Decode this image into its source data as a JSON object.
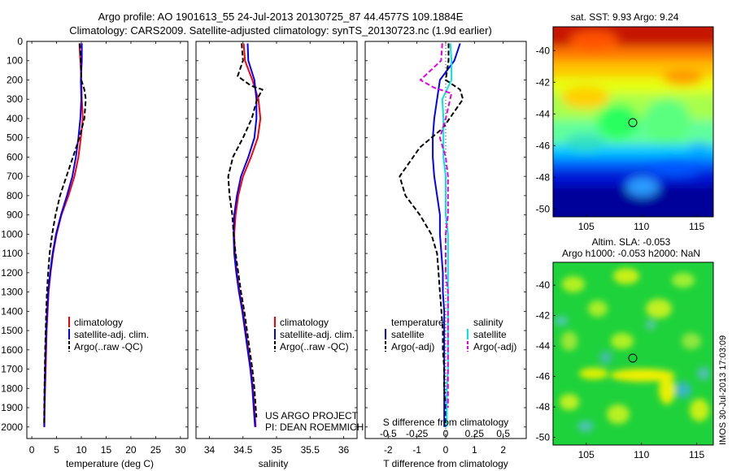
{
  "header": {
    "line1": "Argo profile: AO 1901613_55 24-Jul-2013 20130725_87 44.4577S 109.1884E",
    "line2": "Climatology: CARS2009. Satellite-adjusted climatology: synTS_20130723.nc (1.9d earlier)"
  },
  "colors": {
    "climatology": "#ff0000",
    "satellite": "#0000ff",
    "satellite_salinity_diff": "#00e5e5",
    "argo": "#000000",
    "argo_salinity_diff": "#e600e6"
  },
  "chart_data": [
    {
      "type": "line",
      "xlabel": "temperature (deg C)",
      "ylabel": "",
      "xlim": [
        -1,
        31.5
      ],
      "ylim": [
        2060,
        0
      ],
      "xticks": [
        "0",
        "5",
        "10",
        "15",
        "20",
        "25",
        "30"
      ],
      "yticks": [
        "0",
        "100",
        "200",
        "300",
        "400",
        "500",
        "600",
        "700",
        "800",
        "900",
        "1000",
        "1100",
        "1200",
        "1300",
        "1400",
        "1500",
        "1600",
        "1700",
        "1800",
        "1900",
        "2000"
      ],
      "legend": [
        "climatology",
        "satellite-adj. clim.",
        "Argo(..raw -QC)"
      ],
      "legend_position": "lower-right",
      "series": [
        {
          "name": "climatology",
          "style": "solid",
          "color": "red",
          "x": [
            9.6,
            9.8,
            10.0,
            10.1,
            10.3,
            9.9,
            9.4,
            8.6,
            7.4,
            6.0,
            5.0,
            4.3,
            3.8,
            3.4,
            3.2,
            3.0,
            2.9,
            2.8,
            2.7,
            2.6,
            2.55
          ],
          "y": [
            10,
            100,
            200,
            300,
            400,
            500,
            600,
            700,
            800,
            900,
            1000,
            1100,
            1200,
            1300,
            1400,
            1500,
            1600,
            1700,
            1800,
            1900,
            2000
          ]
        },
        {
          "name": "satellite-adj. clim.",
          "style": "solid",
          "color": "blue",
          "x": [
            10.1,
            10.1,
            9.9,
            10.0,
            9.8,
            9.4,
            8.9,
            8.2,
            7.1,
            5.9,
            4.9,
            4.2,
            3.7,
            3.3,
            3.1,
            2.9,
            2.8,
            2.7,
            2.6,
            2.55,
            2.5
          ],
          "y": [
            10,
            100,
            200,
            300,
            400,
            500,
            600,
            700,
            800,
            900,
            1000,
            1100,
            1200,
            1300,
            1400,
            1500,
            1600,
            1700,
            1800,
            1900,
            2000
          ]
        },
        {
          "name": "Argo(..raw -QC)",
          "style": "dashed",
          "color": "black",
          "x": [
            9.7,
            9.9,
            10.0,
            10.6,
            10.9,
            10.6,
            9.6,
            8.3,
            7.0,
            5.7,
            4.8,
            4.1,
            3.6,
            3.3,
            3.05,
            2.9,
            2.8,
            2.7,
            2.62,
            2.56,
            2.52,
            2.5
          ],
          "y": [
            10,
            100,
            200,
            250,
            300,
            400,
            500,
            600,
            700,
            800,
            900,
            1000,
            1100,
            1200,
            1300,
            1400,
            1500,
            1600,
            1700,
            1800,
            1900,
            1990
          ]
        }
      ]
    },
    {
      "type": "line",
      "xlabel": "salinity",
      "ylabel": "",
      "xlim": [
        33.8,
        36.2
      ],
      "ylim": [
        2060,
        0
      ],
      "xticks": [
        "34",
        "34.5",
        "35",
        "35.5",
        "36"
      ],
      "legend": [
        "climatology",
        "satellite-adj. clim.",
        "Argo(..raw -QC)"
      ],
      "legend_position": "lower-right",
      "annotations": [
        "US ARGO PROJECT",
        "PI: DEAN ROEMMICH"
      ],
      "series": [
        {
          "name": "climatology",
          "style": "solid",
          "color": "red",
          "x": [
            34.51,
            34.53,
            34.64,
            34.73,
            34.76,
            34.72,
            34.62,
            34.5,
            34.43,
            34.39,
            34.37,
            34.38,
            34.41,
            34.45,
            34.5,
            34.54,
            34.58,
            34.62,
            34.65,
            34.67,
            34.69
          ],
          "y": [
            10,
            100,
            200,
            300,
            400,
            500,
            600,
            700,
            800,
            900,
            1000,
            1100,
            1200,
            1300,
            1400,
            1500,
            1600,
            1700,
            1800,
            1900,
            2000
          ]
        },
        {
          "name": "satellite-adj. clim.",
          "style": "solid",
          "color": "blue",
          "x": [
            34.57,
            34.58,
            34.67,
            34.7,
            34.7,
            34.67,
            34.58,
            34.47,
            34.41,
            34.37,
            34.36,
            34.37,
            34.4,
            34.44,
            34.49,
            34.53,
            34.57,
            34.61,
            34.64,
            34.66,
            34.68
          ],
          "y": [
            10,
            100,
            200,
            300,
            400,
            500,
            600,
            700,
            800,
            900,
            1000,
            1100,
            1200,
            1300,
            1400,
            1500,
            1600,
            1700,
            1800,
            1900,
            2000
          ]
        },
        {
          "name": "Argo(..raw -QC)",
          "style": "dashed",
          "color": "black",
          "x": [
            34.48,
            34.5,
            34.42,
            34.62,
            34.79,
            34.71,
            34.63,
            34.5,
            34.35,
            34.28,
            34.3,
            34.34,
            34.36,
            34.39,
            34.43,
            34.47,
            34.52,
            34.56,
            34.6,
            34.64,
            34.67,
            34.7
          ],
          "y": [
            10,
            100,
            180,
            230,
            250,
            300,
            400,
            500,
            600,
            700,
            800,
            900,
            1000,
            1100,
            1200,
            1300,
            1400,
            1500,
            1600,
            1700,
            1800,
            1950
          ]
        }
      ]
    },
    {
      "type": "line",
      "xlabel": "T difference from climatology",
      "xlabel_top": "S difference from climatology",
      "xlim": [
        -2.8,
        2.8
      ],
      "xlim_top": [
        -0.7,
        0.7
      ],
      "ylim": [
        2060,
        0
      ],
      "xticks": [
        "-2",
        "-1",
        "0",
        "1",
        "2"
      ],
      "xticks_top": [
        "-0.5",
        "-0.25",
        "0",
        "0.25",
        "0.5"
      ],
      "legend_groups": [
        {
          "title": "temperature",
          "items": [
            "satellite",
            "Argo(-adj)"
          ]
        },
        {
          "title": "salinity",
          "items": [
            "satellite",
            "Argo(-adj)"
          ]
        }
      ],
      "series": [
        {
          "name": "temperature satellite",
          "style": "solid",
          "color": "blue",
          "x": [
            0.5,
            0.3,
            -0.2,
            -0.3,
            -0.4,
            -0.45,
            -0.45,
            -0.4,
            -0.3,
            -0.2,
            -0.2,
            -0.15,
            -0.1,
            -0.1,
            -0.05,
            -0.05,
            -0.05,
            -0.05,
            -0.05,
            -0.05,
            -0.05
          ],
          "y": [
            10,
            100,
            200,
            300,
            400,
            500,
            600,
            700,
            800,
            900,
            1000,
            1100,
            1200,
            1300,
            1400,
            1500,
            1600,
            1700,
            1800,
            1900,
            2000
          ]
        },
        {
          "name": "temperature Argo(-adj)",
          "style": "dashed",
          "color": "black",
          "x": [
            0.1,
            0.1,
            0.0,
            0.5,
            0.6,
            -0.1,
            -0.9,
            -1.6,
            -1.4,
            -0.9,
            -0.5,
            -0.3,
            -0.25,
            -0.2,
            -0.15,
            -0.1,
            -0.1,
            -0.05,
            -0.05,
            0.0,
            0.0
          ],
          "y": [
            10,
            100,
            200,
            250,
            300,
            450,
            550,
            700,
            800,
            900,
            1000,
            1100,
            1200,
            1300,
            1400,
            1500,
            1600,
            1700,
            1800,
            1900,
            2000
          ]
        },
        {
          "name": "salinity satellite",
          "style": "solid",
          "color": "cyan",
          "x": [
            0.04,
            0.05,
            0.05,
            -0.03,
            -0.02,
            -0.02,
            -0.02,
            0.0,
            0.0,
            0.0,
            0.02,
            0.02,
            0.02,
            0.02,
            0.02,
            0.02,
            0.02,
            0.02,
            0.01,
            0.01,
            0.01
          ],
          "y": [
            10,
            100,
            200,
            300,
            400,
            500,
            600,
            700,
            800,
            900,
            1000,
            1100,
            1200,
            1300,
            1400,
            1500,
            1600,
            1700,
            1800,
            1900,
            2000
          ]
        },
        {
          "name": "salinity Argo(-adj)",
          "style": "dashed",
          "color": "magenta",
          "x": [
            -0.03,
            -0.04,
            -0.22,
            -0.1,
            0.05,
            0.0,
            -0.05,
            0.0,
            0.02,
            0.02,
            0.02,
            0.0,
            0.0,
            0.0,
            0.02,
            0.02,
            0.02,
            0.02,
            0.02,
            0.02,
            0.02
          ],
          "y": [
            10,
            100,
            200,
            240,
            270,
            400,
            500,
            600,
            700,
            800,
            900,
            1000,
            1100,
            1200,
            1300,
            1400,
            1500,
            1600,
            1700,
            1800,
            1900
          ]
        }
      ]
    },
    {
      "type": "heatmap",
      "title": "sat. SST: 9.93 Argo: 9.24",
      "xlim": [
        102,
        116.5
      ],
      "ylim": [
        -50.5,
        -38.5
      ],
      "xticks": [
        "105",
        "110",
        "115"
      ],
      "yticks": [
        "-40",
        "-42",
        "-44",
        "-46",
        "-48",
        "-50"
      ],
      "marker": {
        "lon": 109.19,
        "lat": -44.46
      },
      "colormap": "jet"
    },
    {
      "type": "heatmap",
      "title_line1": "Altim. SLA: -0.053",
      "title_line2": "Argo h1000: -0.053 h2000: NaN",
      "xlim": [
        102,
        116.5
      ],
      "ylim": [
        -50.5,
        -38.5
      ],
      "xticks": [
        "105",
        "110",
        "115"
      ],
      "yticks": [
        "-40",
        "-42",
        "-44",
        "-46",
        "-48",
        "-50"
      ],
      "marker": {
        "lon": 109.19,
        "lat": -44.46
      },
      "colormap": "jet"
    }
  ],
  "side_label": "IMOS 30-Jul-2013 17:03:09"
}
